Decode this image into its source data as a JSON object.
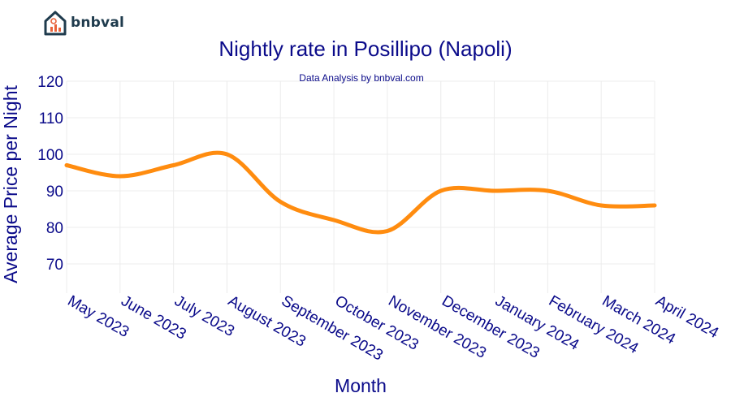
{
  "brand": {
    "name": "bnbval",
    "accent": "#1f3b4d",
    "icon": "house-chart-icon"
  },
  "colors": {
    "line": "#ff8c0f",
    "text": "#0b0b8a",
    "grid": "#ececec"
  },
  "chart_data": {
    "type": "line",
    "title": "Nightly rate in Posillipo (Napoli)",
    "subtitle": "Data Analysis by bnbval.com",
    "xlabel": "Month",
    "ylabel": "Average Price per Night",
    "categories": [
      "May 2023",
      "June 2023",
      "July 2023",
      "August 2023",
      "September 2023",
      "October 2023",
      "November 2023",
      "December 2023",
      "January 2024",
      "February 2024",
      "March 2024",
      "April 2024"
    ],
    "yticks": [
      70,
      80,
      90,
      100,
      110,
      120
    ],
    "ylim": [
      62,
      120
    ],
    "series": [
      {
        "values": [
          97,
          94,
          97,
          100,
          87,
          82,
          79,
          90,
          90,
          90,
          86,
          86
        ]
      }
    ],
    "grid": true,
    "smooth": true
  }
}
